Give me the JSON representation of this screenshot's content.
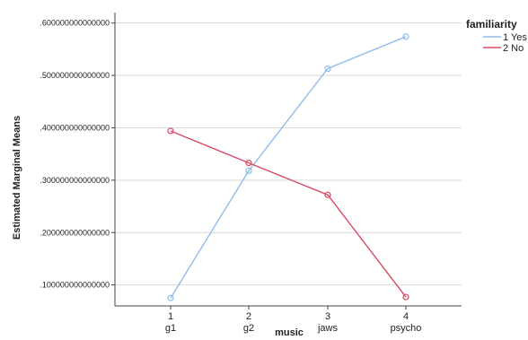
{
  "chart_data": {
    "type": "line",
    "x": [
      "1",
      "2",
      "3",
      "4"
    ],
    "x_sublabels": [
      "g1",
      "g2",
      "jaws",
      "psycho"
    ],
    "xlabel": "music",
    "ylabel": "Estimated Marginal Means",
    "ylim": [
      0.06,
      0.62
    ],
    "yticks": [
      {
        "value": 0.1,
        "label": ".100000000000000"
      },
      {
        "value": 0.2,
        "label": ".200000000000000"
      },
      {
        "value": 0.3,
        "label": ".300000000000000"
      },
      {
        "value": 0.4,
        "label": ".400000000000000"
      },
      {
        "value": 0.5,
        "label": ".500000000000000"
      },
      {
        "value": 0.6,
        "label": ".600000000000000"
      }
    ],
    "grid": "horizontal",
    "legend": {
      "title": "familiarity",
      "position": "top-right"
    },
    "series": [
      {
        "name": "1 Yes",
        "color": "#8fbcec",
        "values": [
          0.075,
          0.318,
          0.513,
          0.574
        ]
      },
      {
        "name": "2 No",
        "color": "#d84a63",
        "values": [
          0.394,
          0.333,
          0.272,
          0.077
        ]
      }
    ]
  }
}
